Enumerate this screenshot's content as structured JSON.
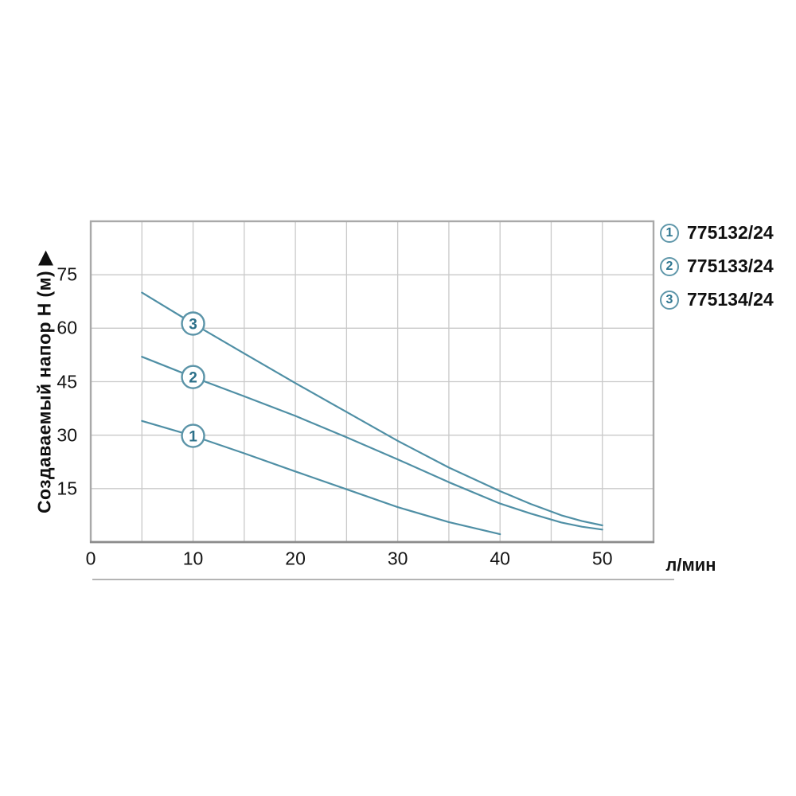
{
  "page": {
    "background": "#ffffff"
  },
  "chart": {
    "y_axis_title": "Создаваемый напор Н (м) ▶",
    "x_axis_unit": "л/мин",
    "colors": {
      "curve": "#4f8fa5",
      "circle_stroke": "#5b94a8",
      "circle_text": "#2c7089",
      "grid": "#c9c9c9",
      "border": "#a9a9a9",
      "axis_bottom": "#8c8c8c",
      "text": "#141414",
      "background": "#ffffff"
    }
  },
  "legend": {
    "items": [
      {
        "id": "1",
        "label": "775132/24"
      },
      {
        "id": "2",
        "label": "775133/24"
      },
      {
        "id": "3",
        "label": "775134/24"
      }
    ]
  },
  "chart_data": {
    "type": "line",
    "title": "",
    "xlabel": "л/мин",
    "ylabel": "Создаваемый напор Н (м)",
    "xlim": [
      0,
      55
    ],
    "ylim": [
      0,
      90
    ],
    "x_ticks": [
      0,
      10,
      20,
      30,
      40,
      50
    ],
    "y_ticks": [
      15,
      30,
      45,
      60,
      75
    ],
    "x_gridline_step": 5,
    "y_gridline_step": 15,
    "grid": true,
    "legend_position": "top-right",
    "series": [
      {
        "id": "1",
        "name": "775132/24",
        "marker_label_at": [
          10,
          29.8
        ],
        "points": [
          [
            5,
            34
          ],
          [
            10,
            29.8
          ],
          [
            15,
            24.9
          ],
          [
            20,
            19.8
          ],
          [
            25,
            14.8
          ],
          [
            30,
            9.8
          ],
          [
            35,
            5.6
          ],
          [
            40,
            2.2
          ]
        ]
      },
      {
        "id": "2",
        "name": "775133/24",
        "marker_label_at": [
          10,
          46.3
        ],
        "points": [
          [
            5,
            52
          ],
          [
            10,
            46.3
          ],
          [
            15,
            40.9
          ],
          [
            20,
            35.4
          ],
          [
            25,
            29.4
          ],
          [
            30,
            23.2
          ],
          [
            35,
            16.8
          ],
          [
            40,
            10.8
          ],
          [
            43,
            8.0
          ],
          [
            46,
            5.5
          ],
          [
            48,
            4.3
          ],
          [
            50,
            3.5
          ]
        ]
      },
      {
        "id": "3",
        "name": "775134/24",
        "marker_label_at": [
          10,
          61.3
        ],
        "points": [
          [
            5,
            70
          ],
          [
            10,
            61.3
          ],
          [
            15,
            52.9
          ],
          [
            20,
            44.6
          ],
          [
            25,
            36.5
          ],
          [
            30,
            28.4
          ],
          [
            35,
            20.9
          ],
          [
            40,
            14.3
          ],
          [
            43,
            10.7
          ],
          [
            46,
            7.5
          ],
          [
            48,
            5.9
          ],
          [
            50,
            4.7
          ]
        ]
      }
    ]
  }
}
